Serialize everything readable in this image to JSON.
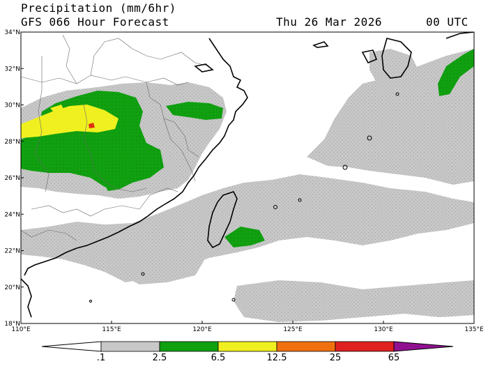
{
  "header": {
    "title": "Precipitation (mm/6hr)",
    "subtitle": "GFS 066 Hour Forecast",
    "valid_date": "Thu 26 Mar 2026",
    "valid_time": "00 UTC"
  },
  "map": {
    "lon_range": [
      110,
      135
    ],
    "lat_range": [
      18,
      34
    ],
    "lat_ticks": [
      {
        "value": 34,
        "label": "34°N"
      },
      {
        "value": 32,
        "label": "32°N"
      },
      {
        "value": 30,
        "label": "30°N"
      },
      {
        "value": 28,
        "label": "28°N"
      },
      {
        "value": 26,
        "label": "26°N"
      },
      {
        "value": 24,
        "label": "24°N"
      },
      {
        "value": 22,
        "label": "22°N"
      },
      {
        "value": 20,
        "label": "20°N"
      },
      {
        "value": 18,
        "label": "18°N"
      }
    ],
    "lon_ticks": [
      {
        "value": 110,
        "label": "110°E"
      },
      {
        "value": 115,
        "label": "115°E"
      },
      {
        "value": 120,
        "label": "120°E"
      },
      {
        "value": 125,
        "label": "125°E"
      },
      {
        "value": 130,
        "label": "130°E"
      },
      {
        "value": 135,
        "label": "135°E"
      }
    ]
  },
  "colorbar": {
    "labels": [
      ".1",
      "2.5",
      "6.5",
      "12.5",
      "25",
      "65"
    ],
    "colors": {
      "below": "#ffffff",
      "c1": "#c8c8c8",
      "c2": "#10a010",
      "c3": "#f0f020",
      "c4": "#f07010",
      "c5": "#e02020",
      "above": "#901090"
    }
  },
  "style_colors": {
    "light": "#c8c8c8",
    "moderate": "#10a010",
    "heavy": "#f0f020",
    "very_heavy": "#e03010"
  }
}
